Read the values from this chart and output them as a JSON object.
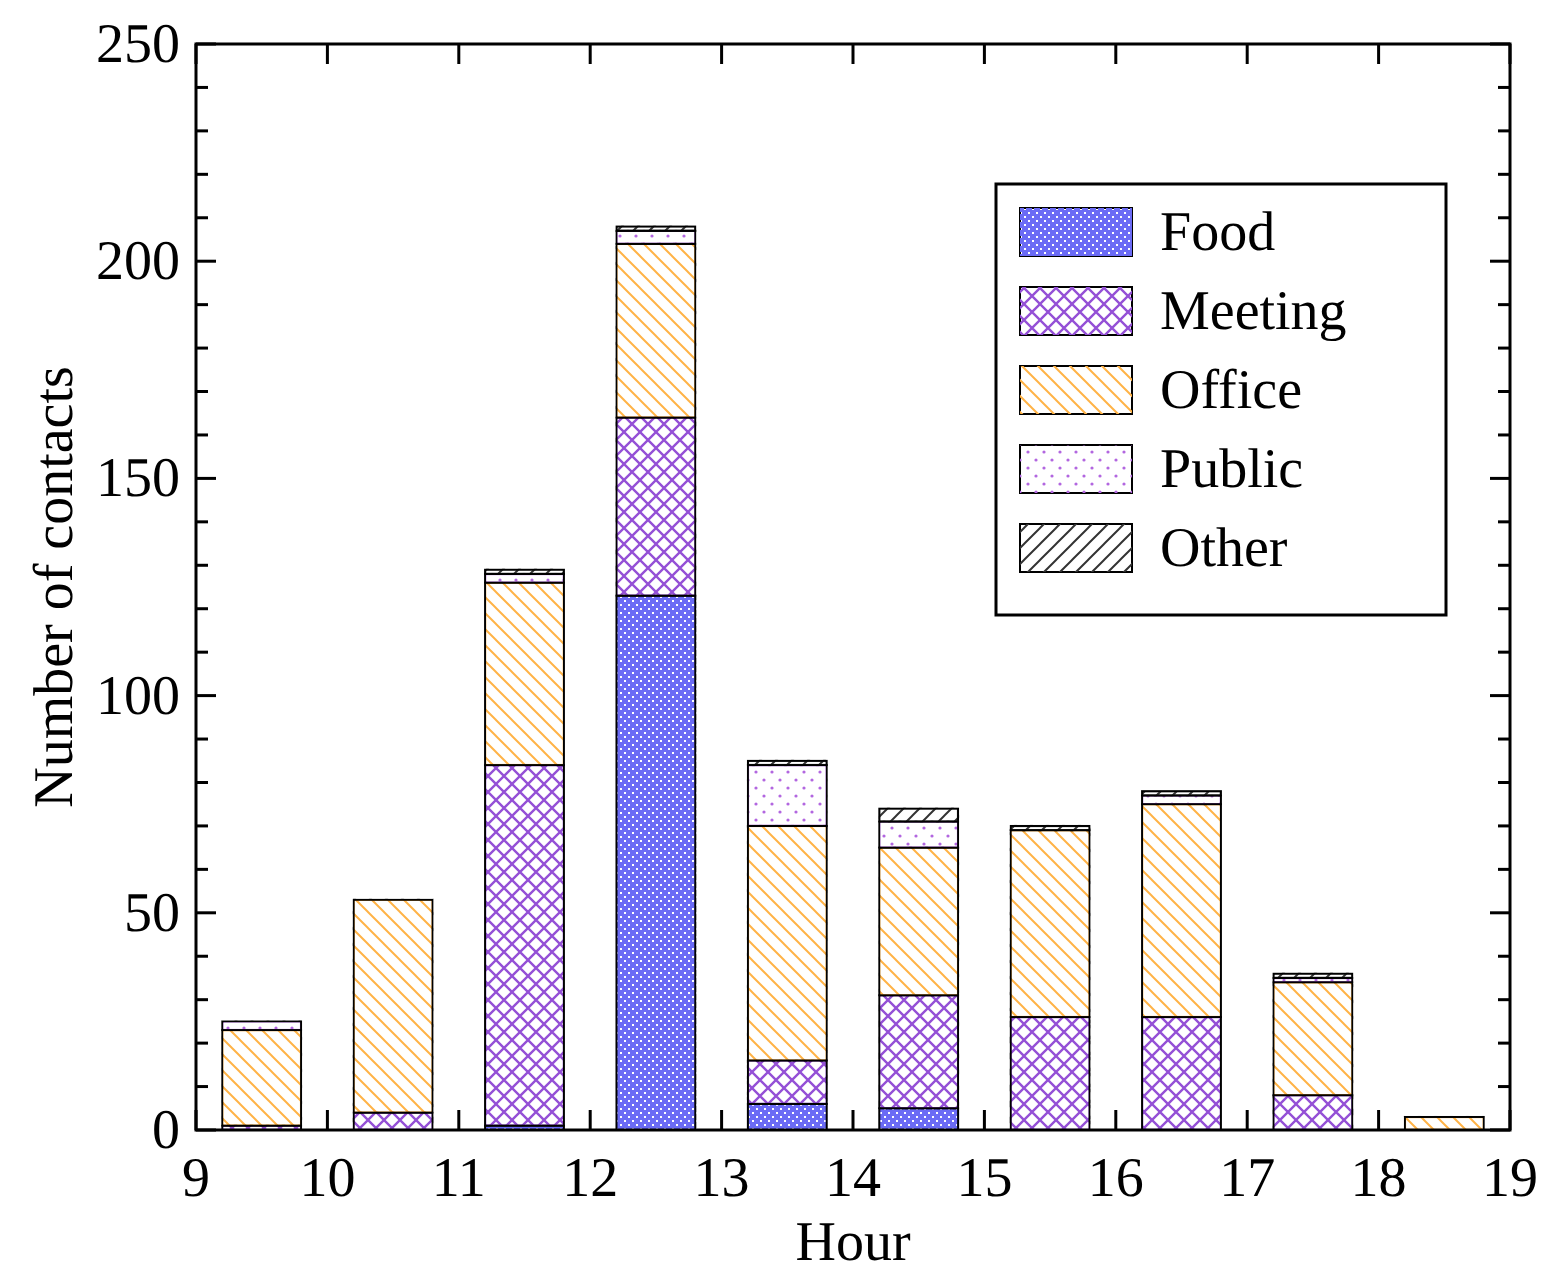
{
  "chart_data": {
    "type": "bar",
    "stacked": true,
    "xlabel": "Hour",
    "ylabel": "Number of contacts",
    "x": [
      9.5,
      10.5,
      11.5,
      12.5,
      13.5,
      14.5,
      15.5,
      16.5,
      17.5,
      18.5
    ],
    "xlim": [
      9,
      19
    ],
    "xticks": [
      9,
      10,
      11,
      12,
      13,
      14,
      15,
      16,
      17,
      18,
      19
    ],
    "ylim": [
      0,
      250
    ],
    "yticks": [
      0,
      {
        "value": 10,
        "label": null
      },
      {
        "value": 20,
        "label": null
      },
      {
        "value": 30,
        "label": null
      },
      {
        "value": 40,
        "label": null
      },
      50,
      {
        "value": 60,
        "label": null
      },
      {
        "value": 70,
        "label": null
      },
      {
        "value": 80,
        "label": null
      },
      {
        "value": 90,
        "label": null
      },
      100,
      {
        "value": 110,
        "label": null
      },
      {
        "value": 120,
        "label": null
      },
      {
        "value": 130,
        "label": null
      },
      {
        "value": 140,
        "label": null
      },
      150,
      {
        "value": 160,
        "label": null
      },
      {
        "value": 170,
        "label": null
      },
      {
        "value": 180,
        "label": null
      },
      {
        "value": 190,
        "label": null
      },
      200,
      {
        "value": 210,
        "label": null
      },
      {
        "value": 220,
        "label": null
      },
      {
        "value": 230,
        "label": null
      },
      {
        "value": 240,
        "label": null
      },
      250
    ],
    "legend": "top right",
    "grid": false,
    "series": [
      {
        "name": "Food",
        "color": "#6b6bf5",
        "values": [
          0,
          0,
          1,
          123,
          6,
          5,
          0,
          0,
          0,
          0
        ]
      },
      {
        "name": "Meeting",
        "color": "#9450d6",
        "values": [
          1,
          4,
          83,
          41,
          10,
          26,
          26,
          26,
          8,
          0
        ]
      },
      {
        "name": "Office",
        "color": "#ffb347",
        "values": [
          22,
          49,
          42,
          40,
          54,
          34,
          43,
          49,
          26,
          3
        ]
      },
      {
        "name": "Public",
        "color": "#b266e0",
        "values": [
          2,
          0,
          2,
          3,
          14,
          6,
          0,
          2,
          1,
          0
        ]
      },
      {
        "name": "Other",
        "color": "#333333",
        "values": [
          0,
          0,
          1,
          1,
          1,
          3,
          1,
          1,
          1,
          0
        ]
      }
    ]
  }
}
